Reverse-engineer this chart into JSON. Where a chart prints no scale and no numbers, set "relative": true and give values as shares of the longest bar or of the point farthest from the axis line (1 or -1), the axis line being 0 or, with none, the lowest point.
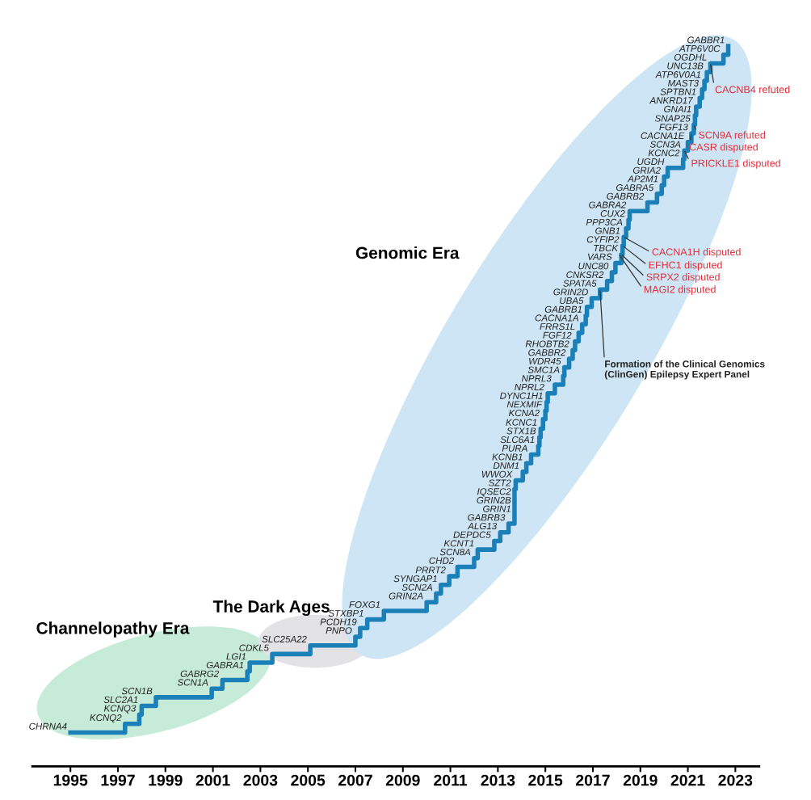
{
  "chart_data": {
    "type": "step",
    "relative": true,
    "line_style": "solid",
    "marker": "none",
    "grid": false,
    "xlim": [
      1993.4,
      2024.0
    ],
    "xticks": [
      1995,
      1997,
      1999,
      2001,
      2003,
      2005,
      2007,
      2009,
      2011,
      2013,
      2015,
      2017,
      2019,
      2021,
      2023
    ],
    "series": [
      {
        "color": "#1b80b8",
        "x": [
          1995.0,
          1997.3,
          1997.9,
          1998.0,
          1998.6,
          2000.95,
          2001.4,
          2002.45,
          2002.55,
          2003.5,
          2005.1,
          2007.0,
          2007.2,
          2007.5,
          2008.2,
          2010.0,
          2010.4,
          2010.6,
          2010.95,
          2011.3,
          2012.0,
          2012.15,
          2012.85,
          2013.1,
          2013.45,
          2013.7,
          2013.7,
          2013.7,
          2013.7,
          2013.75,
          2014.05,
          2014.2,
          2014.4,
          2014.7,
          2014.75,
          2014.8,
          2014.9,
          2015.0,
          2015.05,
          2015.1,
          2015.4,
          2015.75,
          2015.8,
          2016.0,
          2016.15,
          2016.25,
          2016.4,
          2016.55,
          2016.7,
          2016.75,
          2016.95,
          2017.3,
          2017.6,
          2017.8,
          2017.95,
          2018.2,
          2018.25,
          2018.3,
          2018.4,
          2018.5,
          2018.55,
          2019.3,
          2019.7,
          2019.9,
          2020.0,
          2020.15,
          2020.8,
          2020.85,
          2021.0,
          2021.15,
          2021.25,
          2021.3,
          2021.35,
          2021.5,
          2021.6,
          2021.7,
          2021.8,
          2021.95,
          2022.5,
          2022.7
        ],
        "values": [
          0.047,
          0.059,
          0.072,
          0.084,
          0.096,
          0.108,
          0.12,
          0.132,
          0.144,
          0.156,
          0.168,
          0.18,
          0.192,
          0.204,
          0.216,
          0.228,
          0.24,
          0.252,
          0.264,
          0.277,
          0.289,
          0.301,
          0.313,
          0.325,
          0.337,
          0.349,
          0.361,
          0.373,
          0.385,
          0.397,
          0.409,
          0.421,
          0.433,
          0.445,
          0.457,
          0.469,
          0.482,
          0.494,
          0.506,
          0.518,
          0.53,
          0.542,
          0.554,
          0.566,
          0.578,
          0.59,
          0.602,
          0.614,
          0.626,
          0.638,
          0.65,
          0.662,
          0.674,
          0.686,
          0.699,
          0.711,
          0.723,
          0.735,
          0.747,
          0.759,
          0.771,
          0.783,
          0.795,
          0.807,
          0.819,
          0.831,
          0.843,
          0.855,
          0.867,
          0.879,
          0.891,
          0.904,
          0.916,
          0.928,
          0.94,
          0.952,
          0.964,
          0.976,
          0.988,
          1
        ]
      }
    ],
    "annotations": [
      {
        "text": "CHRNA4",
        "x": 1995.0,
        "y": 0.047
      },
      {
        "text": "KCNQ2",
        "x": 1997.3,
        "y": 0.059
      },
      {
        "text": "KCNQ3",
        "x": 1997.9,
        "y": 0.072
      },
      {
        "text": "SLC2A1",
        "x": 1998.0,
        "y": 0.084
      },
      {
        "text": "SCN1B",
        "x": 1998.6,
        "y": 0.096
      },
      {
        "text": "SCN1A",
        "x": 2000.95,
        "y": 0.108
      },
      {
        "text": "GABRG2",
        "x": 2001.4,
        "y": 0.12
      },
      {
        "text": "GABRA1",
        "x": 2002.45,
        "y": 0.132
      },
      {
        "text": "LGI1",
        "x": 2002.55,
        "y": 0.144
      },
      {
        "text": "CDKL5",
        "x": 2003.5,
        "y": 0.156
      },
      {
        "text": "SLC25A22",
        "x": 2005.1,
        "y": 0.168
      },
      {
        "text": "PNPO",
        "x": 2007.0,
        "y": 0.18
      },
      {
        "text": "PCDH19",
        "x": 2007.2,
        "y": 0.192
      },
      {
        "text": "STXBP1",
        "x": 2007.5,
        "y": 0.204
      },
      {
        "text": "FOXG1",
        "x": 2008.2,
        "y": 0.216
      },
      {
        "text": "GRIN2A",
        "x": 2010.0,
        "y": 0.228
      },
      {
        "text": "SCN2A",
        "x": 2010.4,
        "y": 0.24
      },
      {
        "text": "SYNGAP1",
        "x": 2010.6,
        "y": 0.252
      },
      {
        "text": "PRRT2",
        "x": 2010.95,
        "y": 0.264
      },
      {
        "text": "CHD2",
        "x": 2011.3,
        "y": 0.277
      },
      {
        "text": "SCN8A",
        "x": 2012.0,
        "y": 0.289
      },
      {
        "text": "KCNT1",
        "x": 2012.15,
        "y": 0.301
      },
      {
        "text": "DEPDC5",
        "x": 2012.85,
        "y": 0.313
      },
      {
        "text": "ALG13",
        "x": 2013.1,
        "y": 0.325
      },
      {
        "text": "GABRB3",
        "x": 2013.45,
        "y": 0.337
      },
      {
        "text": "GRIN1",
        "x": 2013.7,
        "y": 0.349
      },
      {
        "text": "GRIN2B",
        "x": 2013.7,
        "y": 0.361
      },
      {
        "text": "IQSEC2",
        "x": 2013.7,
        "y": 0.373
      },
      {
        "text": "SZT2",
        "x": 2013.7,
        "y": 0.385
      },
      {
        "text": "WWOX",
        "x": 2013.75,
        "y": 0.397
      },
      {
        "text": "DNM1",
        "x": 2014.05,
        "y": 0.409
      },
      {
        "text": "KCNB1",
        "x": 2014.2,
        "y": 0.421
      },
      {
        "text": "PURA",
        "x": 2014.4,
        "y": 0.433
      },
      {
        "text": "SLC6A1",
        "x": 2014.7,
        "y": 0.445
      },
      {
        "text": "STX1B",
        "x": 2014.75,
        "y": 0.457
      },
      {
        "text": "KCNC1",
        "x": 2014.8,
        "y": 0.469
      },
      {
        "text": "KCNA2",
        "x": 2014.9,
        "y": 0.482
      },
      {
        "text": "NEXMIF",
        "x": 2015.0,
        "y": 0.494
      },
      {
        "text": "DYNC1H1",
        "x": 2015.05,
        "y": 0.506
      },
      {
        "text": "NPRL2",
        "x": 2015.1,
        "y": 0.518
      },
      {
        "text": "NPRL3",
        "x": 2015.4,
        "y": 0.53
      },
      {
        "text": "SMC1A",
        "x": 2015.75,
        "y": 0.542
      },
      {
        "text": "WDR45",
        "x": 2015.8,
        "y": 0.554
      },
      {
        "text": "GABBR2",
        "x": 2016.0,
        "y": 0.566
      },
      {
        "text": "RHOBTB2",
        "x": 2016.15,
        "y": 0.578
      },
      {
        "text": "FGF12",
        "x": 2016.25,
        "y": 0.59
      },
      {
        "text": "FRRS1L",
        "x": 2016.4,
        "y": 0.602
      },
      {
        "text": "CACNA1A",
        "x": 2016.55,
        "y": 0.614
      },
      {
        "text": "GABRB1",
        "x": 2016.7,
        "y": 0.626
      },
      {
        "text": "UBA5",
        "x": 2016.75,
        "y": 0.638
      },
      {
        "text": "GRIN2D",
        "x": 2016.95,
        "y": 0.65
      },
      {
        "text": "SPATA5",
        "x": 2017.3,
        "y": 0.662
      },
      {
        "text": "CNKSR2",
        "x": 2017.6,
        "y": 0.674
      },
      {
        "text": "UNC80",
        "x": 2017.8,
        "y": 0.686
      },
      {
        "text": "VARS",
        "x": 2017.95,
        "y": 0.699
      },
      {
        "text": "TBCK",
        "x": 2018.2,
        "y": 0.711
      },
      {
        "text": "CYFIP2",
        "x": 2018.25,
        "y": 0.723
      },
      {
        "text": "GNB1",
        "x": 2018.3,
        "y": 0.735
      },
      {
        "text": "PPP3CA",
        "x": 2018.4,
        "y": 0.747
      },
      {
        "text": "CUX2",
        "x": 2018.5,
        "y": 0.759
      },
      {
        "text": "GABRA2",
        "x": 2018.55,
        "y": 0.771
      },
      {
        "text": "GABRB2",
        "x": 2019.3,
        "y": 0.783
      },
      {
        "text": "GABRA5",
        "x": 2019.7,
        "y": 0.795
      },
      {
        "text": "AP2M1",
        "x": 2019.9,
        "y": 0.807
      },
      {
        "text": "GRIA2",
        "x": 2020.0,
        "y": 0.819
      },
      {
        "text": "UGDH",
        "x": 2020.15,
        "y": 0.831
      },
      {
        "text": "KCNC2",
        "x": 2020.8,
        "y": 0.843
      },
      {
        "text": "SCN3A",
        "x": 2020.85,
        "y": 0.855
      },
      {
        "text": "CACNA1E",
        "x": 2021.0,
        "y": 0.867
      },
      {
        "text": "FGF13",
        "x": 2021.15,
        "y": 0.879
      },
      {
        "text": "SNAP25",
        "x": 2021.25,
        "y": 0.891
      },
      {
        "text": "GNAI1",
        "x": 2021.3,
        "y": 0.904
      },
      {
        "text": "ANKRD17",
        "x": 2021.35,
        "y": 0.916
      },
      {
        "text": "SPTBN1",
        "x": 2021.5,
        "y": 0.928
      },
      {
        "text": "MAST3",
        "x": 2021.6,
        "y": 0.94
      },
      {
        "text": "ATP6V0A1",
        "x": 2021.7,
        "y": 0.952
      },
      {
        "text": "UNC13B",
        "x": 2021.8,
        "y": 0.964
      },
      {
        "text": "OGDHL",
        "x": 2021.95,
        "y": 0.976
      },
      {
        "text": "ATP6V0C",
        "x": 2022.5,
        "y": 0.988
      },
      {
        "text": "GABBR1",
        "x": 2022.7,
        "y": 1
      },
      {
        "text": "CACNB4 refuted",
        "x": 2021.95,
        "y": 0.976
      },
      {
        "text": "SCN9A refuted",
        "x": 2021.25,
        "y": 0.891
      },
      {
        "text": "CASR disputed",
        "x": 2021.15,
        "y": 0.879
      },
      {
        "text": "PRICKLE1 disputed",
        "x": 2020.85,
        "y": 0.855
      },
      {
        "text": "CACNA1H disputed",
        "x": 2018.3,
        "y": 0.735
      },
      {
        "text": "EFHC1 disputed",
        "x": 2018.25,
        "y": 0.723
      },
      {
        "text": "SRPX2 disputed",
        "x": 2018.2,
        "y": 0.711
      },
      {
        "text": "MAGI2 disputed",
        "x": 2018.1,
        "y": 0.711
      },
      {
        "text": "Formation of the Clinical Genomics\n(ClinGen) Epilepsy Expert Panel",
        "x": 2017.3,
        "y": 0.662
      },
      "Genomic Era",
      "The Dark Ages",
      "Channelopathy Era"
    ]
  }
}
